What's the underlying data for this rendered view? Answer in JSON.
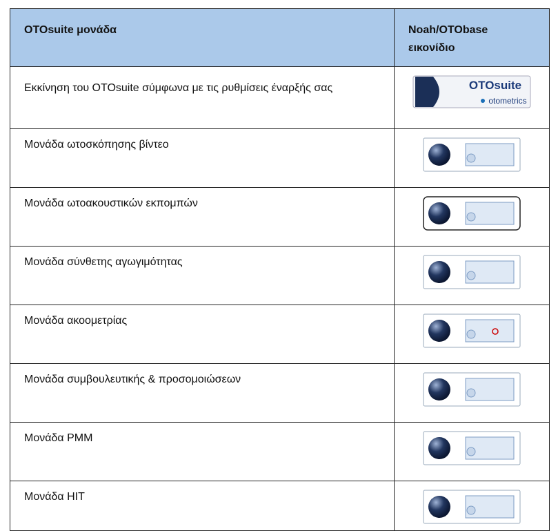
{
  "table": {
    "header": [
      "OTOsuite μονάδα",
      "Noah/OTObase εικονίδιο"
    ],
    "rows": [
      {
        "module": "Εκκίνηση του OTOsuite σύμφωνα με τις ρυθμίσεις έναρξής σας",
        "icon_title": "OTOsuite",
        "icon_subtitle": "otometrics"
      },
      {
        "module": "Μονάδα ωτοσκόπησης βίντεο"
      },
      {
        "module": "Μονάδα ωτοακουστικών εκπομπών"
      },
      {
        "module": "Μονάδα σύνθετης αγωγιμότητας"
      },
      {
        "module": "Μονάδα ακοομετρίας"
      },
      {
        "module": "Μονάδα συμβουλευτικής & προσομοιώσεων"
      },
      {
        "module": "Μονάδα PMM"
      },
      {
        "module": "Μονάδα HIT"
      }
    ]
  }
}
